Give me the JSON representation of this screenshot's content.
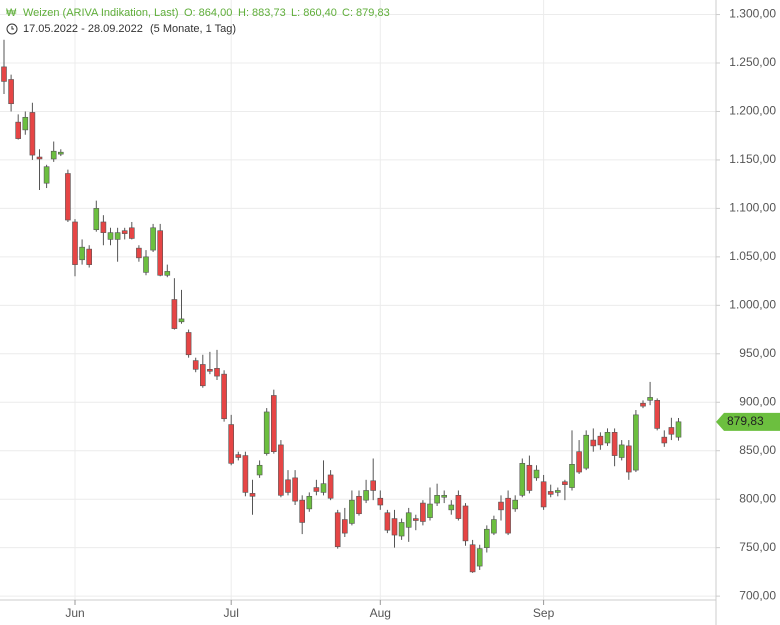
{
  "chart_data": {
    "type": "candlestick",
    "title": "Weizen (ARIVA Indikation, Last)",
    "ohlc_labels": [
      "O: 864,00",
      "H: 883,73",
      "L: 860,40",
      "C: 879,83"
    ],
    "period": "17.05.2022 - 28.09.2022",
    "period_note": "(5 Monate, 1 Tag)",
    "categories": [
      null,
      null,
      null,
      null,
      null,
      null,
      null,
      null,
      null,
      null,
      "Jun",
      null,
      null,
      null,
      null,
      null,
      null,
      null,
      null,
      null,
      null,
      null,
      null,
      null,
      null,
      null,
      null,
      null,
      null,
      null,
      null,
      null,
      "Jul",
      null,
      null,
      null,
      null,
      null,
      null,
      null,
      null,
      null,
      null,
      null,
      null,
      null,
      null,
      null,
      null,
      null,
      null,
      null,
      null,
      "Aug",
      null,
      null,
      null,
      null,
      null,
      null,
      null,
      null,
      null,
      null,
      null,
      null,
      null,
      null,
      null,
      null,
      null,
      null,
      null,
      null,
      null,
      null,
      "Sep",
      null,
      null,
      null,
      null,
      null,
      null,
      null,
      null,
      null,
      null,
      null,
      null,
      null,
      null,
      null,
      null,
      null,
      null,
      null
    ],
    "open": [
      1246,
      1233,
      1189,
      1181,
      1199,
      1153,
      1126,
      1151,
      1156,
      1136,
      1086,
      1047,
      1058,
      1078,
      1086,
      1068,
      1068,
      1077,
      1080,
      1059,
      1034,
      1057,
      1077,
      1031,
      1006,
      983,
      972,
      943,
      939,
      934,
      935,
      929,
      877,
      846,
      845,
      806,
      825,
      847,
      907,
      856,
      820,
      822,
      799,
      790,
      812,
      807,
      825,
      786,
      779,
      775,
      803,
      799,
      819,
      801,
      786,
      780,
      762,
      771,
      780,
      796,
      781,
      796,
      802,
      789,
      804,
      793,
      753,
      731,
      750,
      765,
      797,
      801,
      790,
      804,
      835,
      822,
      818,
      808,
      807,
      818,
      812,
      849,
      832,
      861,
      865,
      858,
      869,
      843,
      855,
      830,
      899,
      902,
      902,
      864,
      874,
      864
    ],
    "high": [
      1274,
      1238,
      1197,
      1200,
      1209,
      1161,
      1145,
      1169,
      1161,
      1140,
      1089,
      1068,
      1062,
      1108,
      1093,
      1080,
      1080,
      1080,
      1086,
      1062,
      1057,
      1084,
      1084,
      1042,
      1028,
      1016,
      975,
      946,
      949,
      952,
      954,
      933,
      887,
      849,
      849,
      820,
      840,
      894,
      913,
      861,
      830,
      830,
      804,
      807,
      820,
      840,
      830,
      789,
      791,
      809,
      809,
      820,
      842,
      809,
      789,
      789,
      780,
      791,
      784,
      799,
      812,
      816,
      809,
      799,
      809,
      796,
      758,
      753,
      773,
      783,
      804,
      809,
      804,
      842,
      845,
      835,
      825,
      815,
      812,
      820,
      871,
      861,
      871,
      873,
      869,
      873,
      873,
      861,
      861,
      892,
      902,
      921,
      904,
      871,
      884,
      883.73
    ],
    "low": [
      1218,
      1200,
      1171,
      1176,
      1150,
      1119,
      1121,
      1148,
      1154,
      1086,
      1030,
      1042,
      1039,
      1076,
      1062,
      1062,
      1045,
      1068,
      1068,
      1045,
      1031,
      1055,
      1030,
      1029,
      975,
      981,
      946,
      931,
      915,
      929,
      923,
      880,
      835,
      840,
      803,
      784,
      822,
      845,
      847,
      802,
      804,
      794,
      764,
      787,
      804,
      804,
      799,
      749,
      761,
      773,
      783,
      796,
      799,
      789,
      765,
      750,
      758,
      756,
      768,
      773,
      778,
      793,
      796,
      784,
      778,
      752,
      724,
      727,
      745,
      763,
      778,
      763,
      787,
      802,
      806,
      819,
      789,
      802,
      803,
      799,
      809,
      826,
      830,
      849,
      851,
      855,
      834,
      840,
      820,
      828,
      894,
      897,
      871,
      854,
      861,
      860.4
    ],
    "close": [
      1231,
      1208,
      1172,
      1194,
      1155,
      1151,
      1143,
      1159,
      1158,
      1088,
      1042,
      1060,
      1042,
      1100,
      1075,
      1075,
      1075,
      1074,
      1069,
      1049,
      1050,
      1080,
      1031,
      1035,
      976,
      986,
      949,
      934,
      917,
      932,
      927,
      883,
      837,
      843,
      807,
      803,
      835,
      890,
      849,
      804,
      807,
      798,
      776,
      803,
      808,
      816,
      801,
      751,
      765,
      799,
      785,
      809,
      809,
      794,
      768,
      763,
      776,
      786,
      778,
      777,
      795,
      804,
      804,
      794,
      780,
      757,
      725,
      749,
      769,
      779,
      789,
      765,
      799,
      837,
      809,
      830,
      792,
      805,
      809,
      815,
      836,
      828,
      866,
      855,
      856,
      869,
      845,
      856,
      828,
      887,
      896,
      905,
      873,
      858,
      867,
      879.83
    ],
    "up_color": "#6cbf3f",
    "down_color": "#e64545",
    "last_price": {
      "value": 879.83,
      "label": "879,83"
    },
    "ylim": [
      696,
      1315
    ],
    "yticks": [
      {
        "value": 700,
        "label": "700,00"
      },
      {
        "value": 750,
        "label": "750,00"
      },
      {
        "value": 800,
        "label": "800,00"
      },
      {
        "value": 850,
        "label": "850,00"
      },
      {
        "value": 900,
        "label": "900,00"
      },
      {
        "value": 950,
        "label": "950,00"
      },
      {
        "value": 1000,
        "label": "1.000,00"
      },
      {
        "value": 1050,
        "label": "1.050,00"
      },
      {
        "value": 1100,
        "label": "1.100,00"
      },
      {
        "value": 1150,
        "label": "1.150,00"
      },
      {
        "value": 1200,
        "label": "1.200,00"
      },
      {
        "value": 1250,
        "label": "1.250,00"
      },
      {
        "value": 1300,
        "label": "1.300,00"
      }
    ],
    "grid": true
  }
}
